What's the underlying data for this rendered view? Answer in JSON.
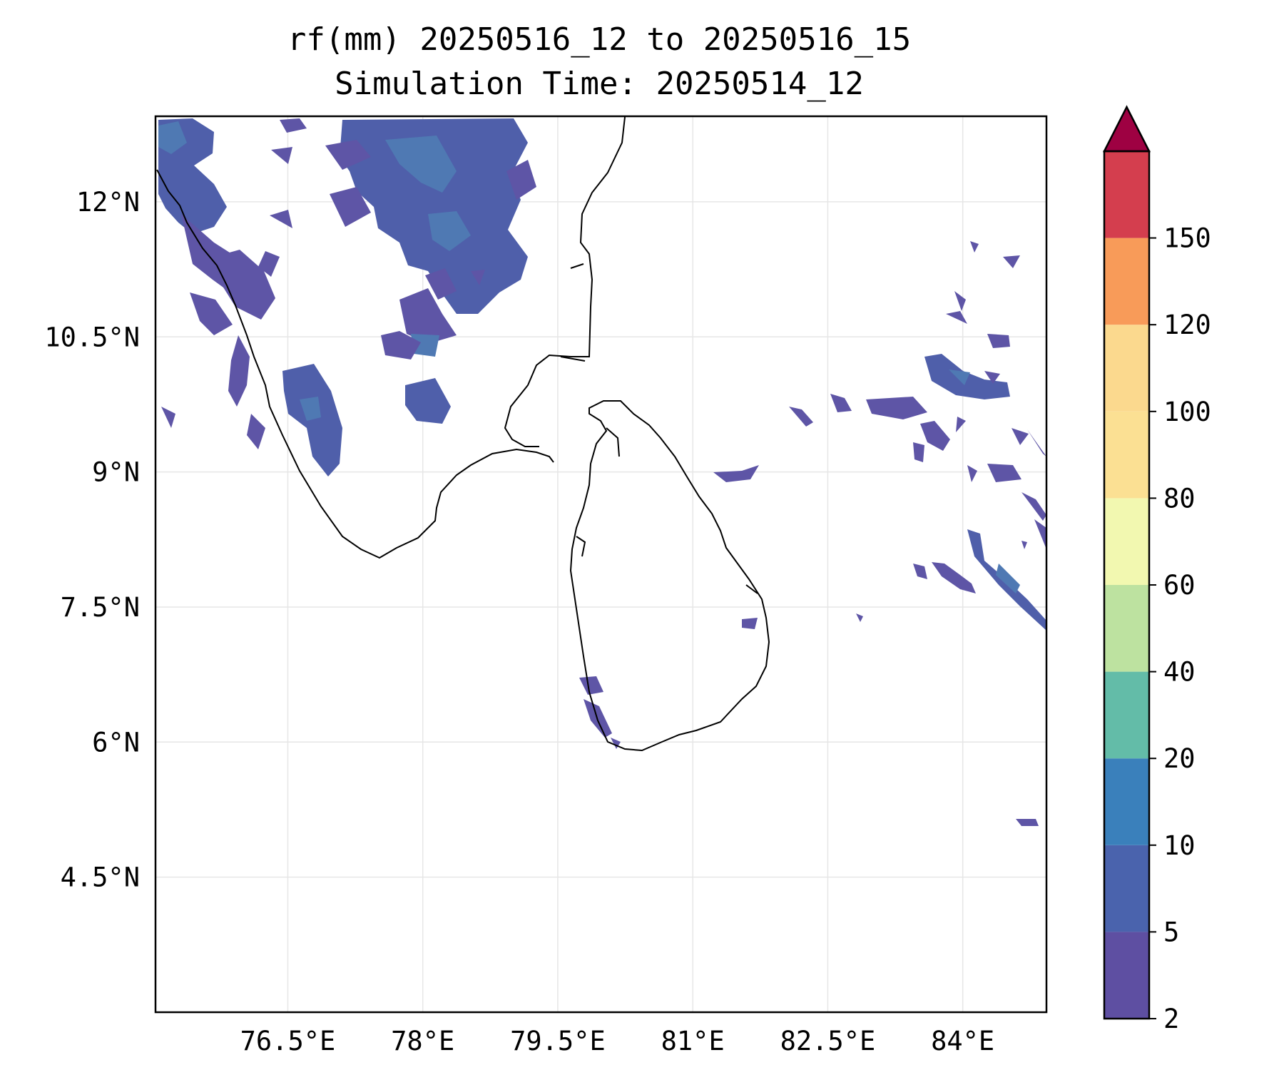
{
  "title": "rf(mm) 20250516_12 to 20250516_15",
  "subtitle": "Simulation Time: 20250514_12",
  "map": {
    "lon_ticks": [
      "76.5°E",
      "78°E",
      "79.5°E",
      "81°E",
      "82.5°E",
      "84°E"
    ],
    "lat_ticks": [
      "12°N",
      "10.5°N",
      "9°N",
      "7.5°N",
      "6°N",
      "4.5°N"
    ],
    "gridlines": true,
    "coastline_color": "#000000",
    "rain_fill_color": "#5e55a6"
  },
  "colorbar": {
    "levels": [
      "2",
      "5",
      "10",
      "20",
      "40",
      "60",
      "80",
      "100",
      "120",
      "150"
    ],
    "colors": [
      "#5e4fa2",
      "#4a63ad",
      "#3a80bb",
      "#63bca8",
      "#bde2a0",
      "#f2f8b0",
      "#fbe093",
      "#fbd98e",
      "#f89b59",
      "#d43e4e"
    ],
    "extend_color": "#9e0142",
    "extend": "max",
    "unit": "mm"
  }
}
